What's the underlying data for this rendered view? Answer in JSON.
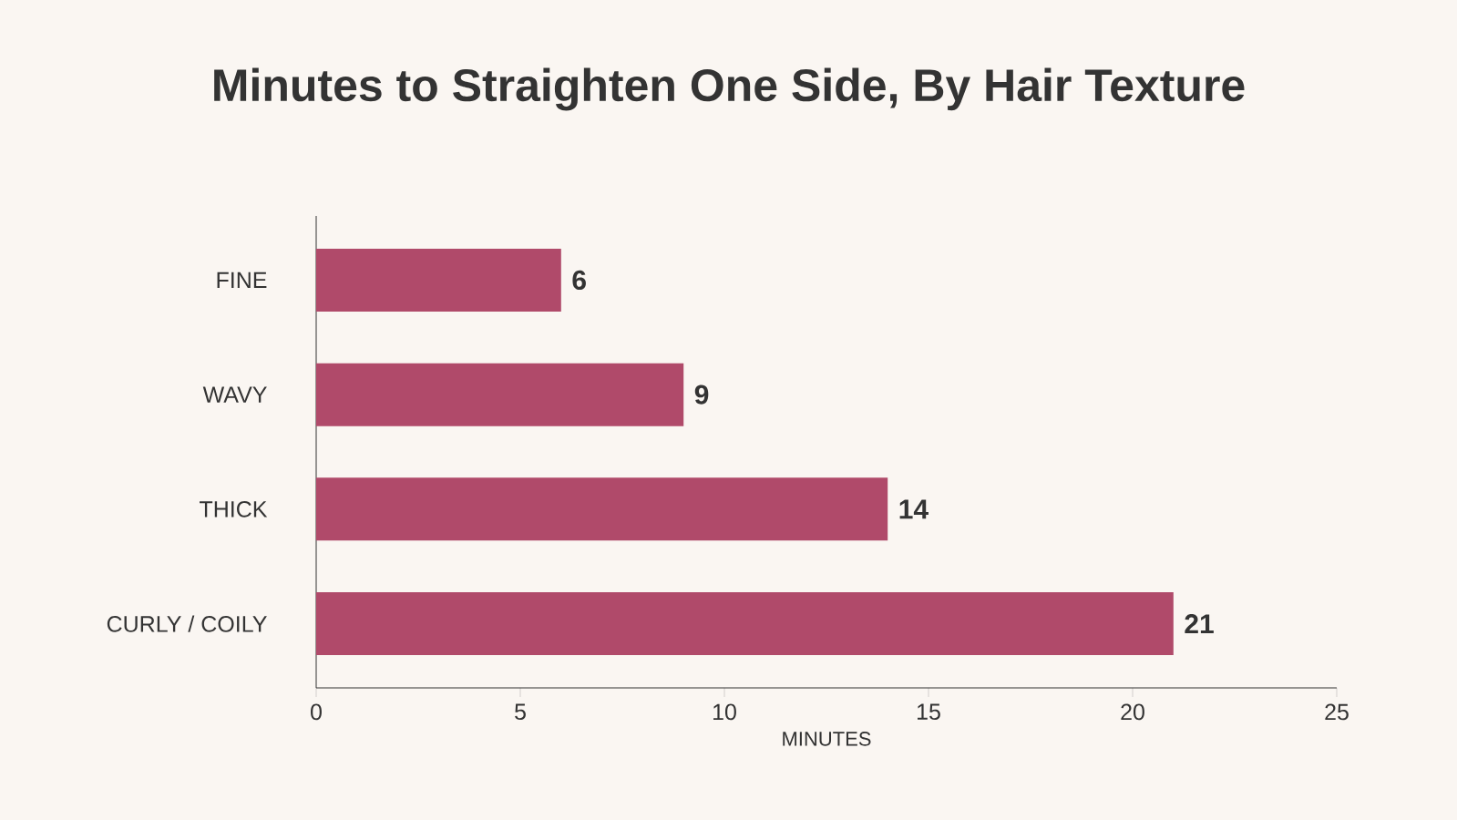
{
  "chart_data": {
    "type": "bar",
    "orientation": "horizontal",
    "title": "Minutes to Straighten One Side, By Hair Texture",
    "xlabel": "MINUTES",
    "categories": [
      "FINE",
      "WAVY",
      "THICK",
      "CURLY / COILY"
    ],
    "values": [
      6,
      9,
      14,
      21
    ],
    "color": "#b04a6a",
    "data_labels": true,
    "xlim": [
      0,
      25
    ],
    "xticks": [
      0,
      5,
      10,
      15,
      20,
      25
    ],
    "grid": false
  }
}
